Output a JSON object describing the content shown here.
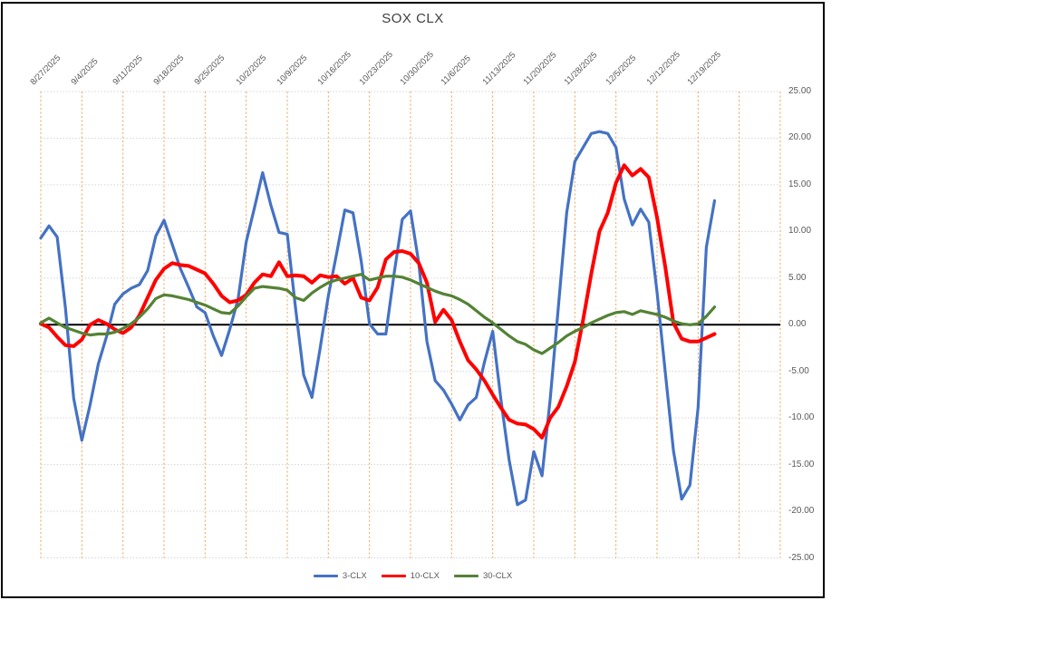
{
  "chart": {
    "title": "SOX CLX",
    "y_ticks": [
      "25.00",
      "20.00",
      "15.00",
      "10.00",
      "5.00",
      "0.00",
      "-5.00",
      "-10.00",
      "-15.00",
      "-20.00",
      "-25.00"
    ],
    "x_labels": [
      "8/27/2025",
      "9/4/2025",
      "9/11/2025",
      "9/18/2025",
      "9/25/2025",
      "10/2/2025",
      "10/9/2025",
      "10/16/2025",
      "10/23/2025",
      "10/30/2025",
      "11/6/2025",
      "11/13/2025",
      "11/20/2025",
      "11/28/2025",
      "12/5/2025",
      "12/12/2025",
      "12/19/2025"
    ],
    "legend": [
      "3-CLX",
      "10-CLX",
      "30-CLX"
    ],
    "colors": {
      "series_blue": "#4472C4",
      "series_red": "#FF0000",
      "series_green": "#548235",
      "v_grid": "#F1A055",
      "h_grid": "#D6D6D6",
      "zero_line": "#000000",
      "axis_text": "#595959",
      "title_text": "#404040",
      "frame_border": "#000000"
    }
  },
  "chart_data": {
    "type": "line",
    "title": "SOX CLX",
    "x_tick_labels": [
      "8/27/2025",
      "9/4/2025",
      "9/11/2025",
      "9/18/2025",
      "9/25/2025",
      "10/2/2025",
      "10/9/2025",
      "10/16/2025",
      "10/23/2025",
      "10/30/2025",
      "11/6/2025",
      "11/13/2025",
      "11/20/2025",
      "11/28/2025",
      "12/5/2025",
      "12/12/2025",
      "12/19/2025"
    ],
    "x_tick_positions_days": [
      0,
      5,
      10,
      15,
      20,
      25,
      30,
      35,
      40,
      45,
      50,
      55,
      60,
      65,
      70,
      75,
      80
    ],
    "x_total_days": 90,
    "x_gridline_count": 19,
    "ylim": [
      -25,
      25
    ],
    "y_tick_step": 5,
    "grid": true,
    "legend_position": "bottom",
    "axis_labels_position": {
      "x": "top-rotated-45",
      "y": "right"
    },
    "series": [
      {
        "name": "3-CLX",
        "color": "#4472C4",
        "values": [
          9.3,
          10.6,
          9.4,
          1.8,
          -7.9,
          -12.4,
          -8.6,
          -4.2,
          -1.3,
          2.2,
          3.3,
          3.9,
          4.3,
          5.8,
          9.5,
          11.2,
          8.6,
          6.0,
          4.0,
          1.9,
          1.3,
          -1.2,
          -3.3,
          -0.5,
          2.7,
          8.9,
          12.5,
          16.3,
          12.8,
          9.9,
          9.7,
          1.8,
          -5.4,
          -7.8,
          -2.5,
          3.1,
          7.6,
          12.3,
          12.0,
          6.8,
          0.1,
          -1.0,
          -1.0,
          5.5,
          11.3,
          12.2,
          6.6,
          -1.8,
          -6.0,
          -7.0,
          -8.5,
          -10.2,
          -8.6,
          -7.8,
          -4.0,
          -0.7,
          -8.0,
          -14.5,
          -19.3,
          -18.8,
          -13.6,
          -16.2,
          -8.0,
          2.0,
          12.0,
          17.5,
          19.0,
          20.5,
          20.7,
          20.5,
          19.0,
          13.5,
          10.7,
          12.4,
          11.0,
          3.5,
          -5.1,
          -13.5,
          -18.7,
          -17.2,
          -8.9,
          8.3,
          13.3
        ]
      },
      {
        "name": "10-CLX",
        "color": "#FF0000",
        "values": [
          0.1,
          -0.3,
          -1.3,
          -2.2,
          -2.3,
          -1.6,
          0.0,
          0.5,
          0.1,
          -0.5,
          -0.9,
          -0.3,
          1.0,
          2.9,
          4.8,
          6.0,
          6.6,
          6.4,
          6.3,
          5.9,
          5.5,
          4.4,
          3.1,
          2.4,
          2.6,
          3.2,
          4.5,
          5.4,
          5.2,
          6.7,
          5.2,
          5.3,
          5.2,
          4.5,
          5.3,
          5.1,
          5.2,
          4.4,
          5.0,
          2.9,
          2.6,
          4.0,
          7.0,
          7.8,
          7.9,
          7.6,
          6.6,
          4.5,
          0.3,
          1.6,
          0.5,
          -1.8,
          -3.8,
          -4.8,
          -6.0,
          -7.5,
          -8.9,
          -10.2,
          -10.6,
          -10.7,
          -11.2,
          -12.1,
          -10.0,
          -8.8,
          -6.6,
          -4.0,
          0.5,
          5.5,
          10.0,
          12.0,
          15.2,
          17.1,
          16.0,
          16.7,
          15.8,
          11.5,
          6.2,
          0.2,
          -1.5,
          -1.8,
          -1.8,
          -1.4,
          -1.0
        ]
      },
      {
        "name": "30-CLX",
        "color": "#548235",
        "values": [
          0.2,
          0.7,
          0.2,
          -0.3,
          -0.6,
          -0.9,
          -1.1,
          -1.0,
          -1.0,
          -0.8,
          -0.4,
          0.1,
          0.8,
          1.7,
          2.8,
          3.2,
          3.1,
          2.9,
          2.7,
          2.4,
          2.1,
          1.7,
          1.3,
          1.2,
          2.0,
          3.0,
          3.9,
          4.1,
          4.0,
          3.9,
          3.7,
          2.9,
          2.6,
          3.4,
          4.0,
          4.5,
          4.8,
          5.0,
          5.2,
          5.4,
          4.8,
          5.0,
          5.2,
          5.2,
          5.1,
          4.8,
          4.4,
          4.0,
          3.6,
          3.3,
          3.1,
          2.7,
          2.2,
          1.5,
          0.8,
          0.2,
          -0.5,
          -1.2,
          -1.8,
          -2.1,
          -2.7,
          -3.1,
          -2.5,
          -1.9,
          -1.2,
          -0.7,
          -0.3,
          0.2,
          0.6,
          1.0,
          1.3,
          1.4,
          1.1,
          1.5,
          1.3,
          1.1,
          0.8,
          0.4,
          0.1,
          0.0,
          0.1,
          0.9,
          1.9
        ]
      }
    ]
  }
}
